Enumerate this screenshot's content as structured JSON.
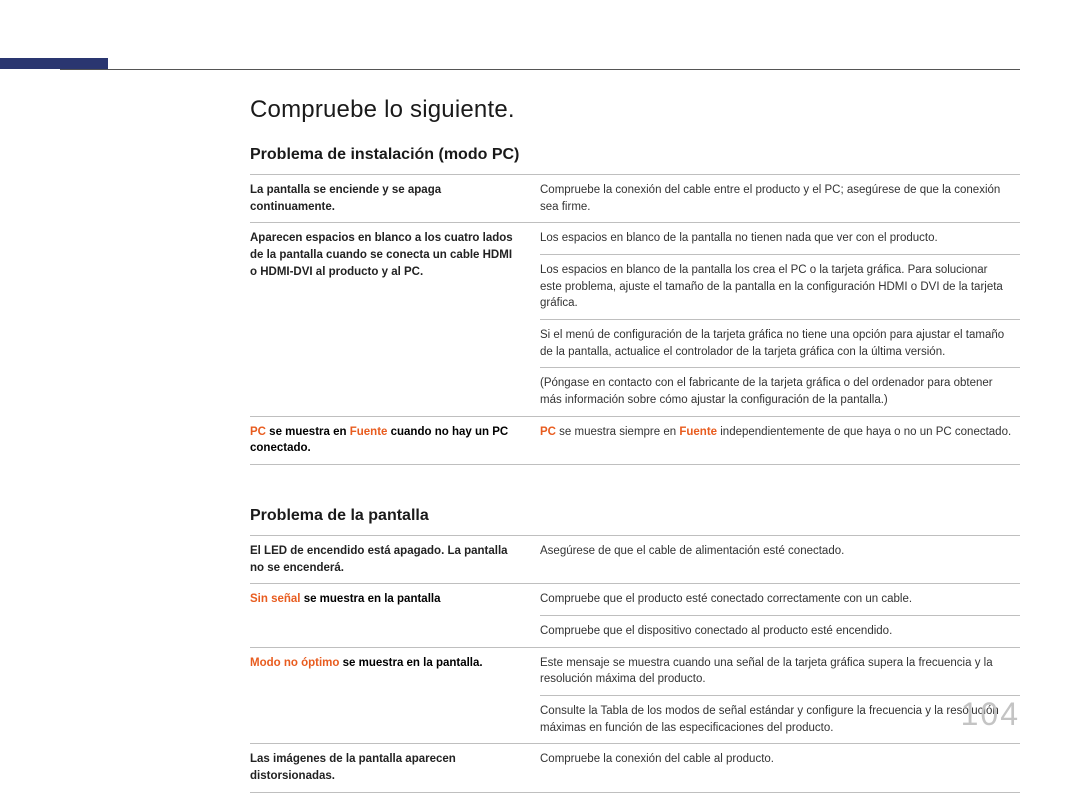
{
  "page_number": "104",
  "colors": {
    "accent": "#2a3670",
    "orange": "#e85c1f",
    "rule": "#bfbfbf",
    "page_num": "#c4c4c4"
  },
  "heading_main": "Compruebe lo siguiente.",
  "section1": {
    "title": "Problema de instalación (modo PC)",
    "rows": [
      {
        "left_plain": "La pantalla se enciende y se apaga continuamente.",
        "right": "Compruebe la conexión del cable entre el producto y el PC; asegúrese de que la conexión sea firme."
      },
      {
        "left_plain": "Aparecen espacios en blanco a los cuatro lados de la pantalla cuando se conecta un cable HDMI o HDMI-DVI al producto y al PC.",
        "right": "Los espacios en blanco de la pantalla no tienen nada que ver con el producto."
      },
      {
        "continued": true,
        "right": "Los espacios en blanco de la pantalla los crea el PC o la tarjeta gráfica. Para solucionar este problema, ajuste el tamaño de la pantalla en la configuración HDMI o DVI de la tarjeta gráfica."
      },
      {
        "continued": true,
        "right": "Si el menú de configuración de la tarjeta gráfica no tiene una opción para ajustar el tamaño de la pantalla, actualice el controlador de la tarjeta gráfica con la última versión."
      },
      {
        "continued": true,
        "right": "(Póngase en contacto con el fabricante de la tarjeta gráfica o del ordenador para obtener más información sobre cómo ajustar la configuración de la pantalla.)"
      },
      {
        "left_frag": [
          {
            "t": "PC",
            "cls": "em-orange"
          },
          {
            "t": " se muestra en ",
            "cls": "em-bold"
          },
          {
            "t": "Fuente",
            "cls": "em-orange"
          },
          {
            "t": " cuando no hay un PC conectado.",
            "cls": "em-bold"
          }
        ],
        "right_frag": [
          {
            "t": "PC",
            "cls": "em-orange"
          },
          {
            "t": " se muestra siempre en "
          },
          {
            "t": "Fuente",
            "cls": "em-orange"
          },
          {
            "t": " independientemente de que haya o no un PC conectado."
          }
        ]
      }
    ]
  },
  "section2": {
    "title": "Problema de la pantalla",
    "rows": [
      {
        "left_plain": "El LED de encendido está apagado. La pantalla no se encenderá.",
        "right": "Asegúrese de que el cable de alimentación esté conectado."
      },
      {
        "left_frag": [
          {
            "t": "Sin señal",
            "cls": "em-orange"
          },
          {
            "t": " se muestra en la pantalla",
            "cls": "em-bold"
          }
        ],
        "right": "Compruebe que el producto esté conectado correctamente con un cable."
      },
      {
        "continued": true,
        "right": "Compruebe que el dispositivo conectado al producto esté encendido."
      },
      {
        "left_frag": [
          {
            "t": "Modo no óptimo",
            "cls": "em-orange"
          },
          {
            "t": " se muestra en la pantalla.",
            "cls": "em-bold"
          }
        ],
        "right": "Este mensaje se muestra cuando una señal de la tarjeta gráfica supera la frecuencia y la resolución máxima del producto."
      },
      {
        "continued": true,
        "right": "Consulte la Tabla de los modos de señal estándar y configure la frecuencia y la resolución máximas en función de las especificaciones del producto."
      },
      {
        "left_plain": "Las imágenes de la pantalla aparecen distorsionadas.",
        "right": "Compruebe la conexión del cable al producto."
      }
    ]
  }
}
